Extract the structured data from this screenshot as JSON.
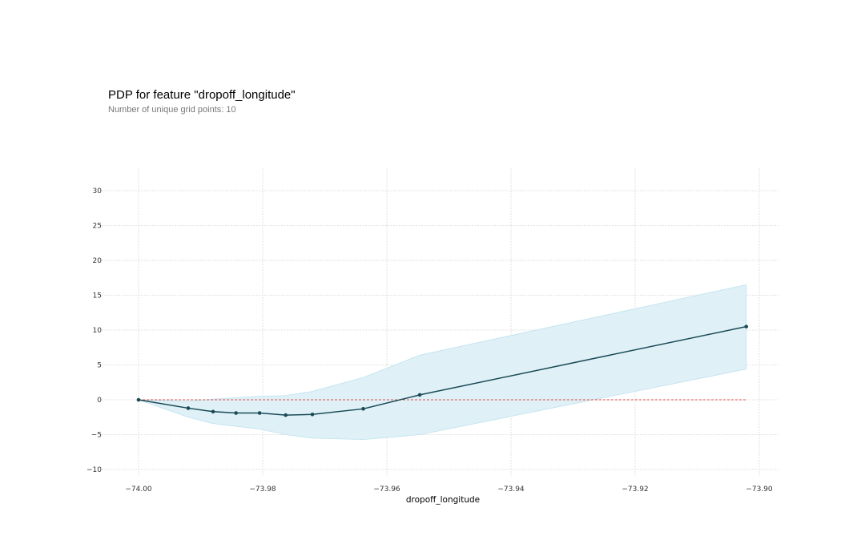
{
  "chart_data": {
    "type": "line",
    "title": "PDP for feature \"dropoff_longitude\"",
    "subtitle": "Number of unique grid points: 10",
    "xlabel": "dropoff_longitude",
    "ylabel": "",
    "xlim": [
      -74.005,
      -73.8975
    ],
    "ylim": [
      -11,
      33
    ],
    "grid": true,
    "xticks": [
      -74.0,
      -73.98,
      -73.96,
      -73.94,
      -73.92,
      -73.9
    ],
    "xtick_labels": [
      "−74.00",
      "−73.98",
      "−73.96",
      "−73.94",
      "−73.92",
      "−73.90"
    ],
    "yticks": [
      -10,
      -5,
      0,
      5,
      10,
      15,
      20,
      25,
      30
    ],
    "ytick_labels": [
      "−10",
      "−5",
      "0",
      "5",
      "10",
      "15",
      "20",
      "25",
      "30"
    ],
    "series": [
      {
        "x": [
          -74.0,
          -73.992,
          -73.988,
          -73.9843,
          -73.9805,
          -73.9763,
          -73.972,
          -73.9638,
          -73.9547,
          -73.9021
        ],
        "y": [
          0,
          -1.2,
          -1.7,
          -1.9,
          -1.9,
          -2.2,
          -2.1,
          -1.3,
          0.7,
          10.5
        ],
        "upper": [
          0,
          -0.2,
          0.1,
          0.3,
          0.5,
          0.6,
          1.2,
          3.2,
          6.4,
          16.5
        ],
        "lower": [
          0,
          -2.5,
          -3.4,
          -3.8,
          -4.2,
          -5.0,
          -5.5,
          -5.7,
          -5.0,
          4.4
        ],
        "color": "#1a4a56",
        "band_color": "#dff1f7",
        "band_edge_color": "#bfe1ee"
      }
    ],
    "reference_line": {
      "y": 0,
      "color": "#d9534f",
      "style": "dashed"
    },
    "colors": {
      "grid": "#d9d9d9",
      "axis_text": "#333333"
    }
  }
}
